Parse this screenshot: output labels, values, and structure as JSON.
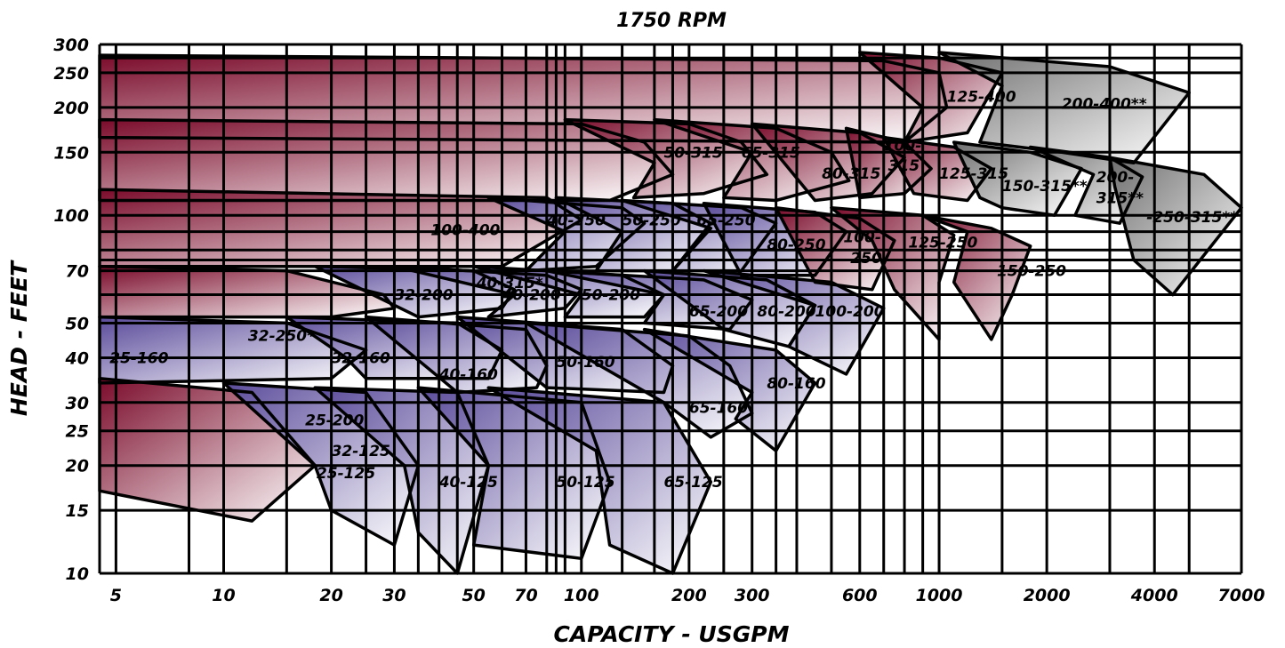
{
  "chart_data": {
    "type": "area",
    "title": "1750 RPM",
    "xlabel": "CAPACITY - USGPM",
    "ylabel": "HEAD - FEET",
    "x_scale": "log",
    "y_scale": "log",
    "xlim": [
      4.5,
      7000
    ],
    "ylim": [
      10,
      300
    ],
    "grid": true,
    "x_tick_labels": [
      "5",
      "10",
      "20",
      "30",
      "50",
      "70",
      "100",
      "200",
      "300",
      "600",
      "1000",
      "2000",
      "4000",
      "7000"
    ],
    "x_tick_values": [
      5,
      10,
      20,
      30,
      50,
      70,
      100,
      200,
      300,
      600,
      1000,
      2000,
      4000,
      7000
    ],
    "y_tick_labels": [
      "10",
      "15",
      "20",
      "25",
      "30",
      "40",
      "50",
      "70",
      "100",
      "150",
      "200",
      "250",
      "300"
    ],
    "y_tick_values": [
      10,
      15,
      20,
      25,
      30,
      40,
      50,
      70,
      100,
      150,
      200,
      250,
      300
    ],
    "x_grid_values": [
      4.5,
      5,
      8,
      10,
      15,
      20,
      25,
      30,
      35,
      40,
      45,
      50,
      60,
      70,
      80,
      85,
      90,
      100,
      130,
      160,
      180,
      200,
      250,
      300,
      350,
      400,
      500,
      600,
      700,
      800,
      900,
      1000,
      1500,
      2000,
      3000,
      4000,
      5000,
      7000
    ],
    "y_grid_values": [
      10,
      15,
      20,
      25,
      30,
      40,
      50,
      60,
      70,
      75,
      80,
      90,
      100,
      150,
      200,
      250,
      275,
      300
    ],
    "colors": {
      "red": "#7a0a2a",
      "blue": "#5a4a9a",
      "gray": "#6e6e6e",
      "light": "#ffffff"
    },
    "regions": [
      {
        "name": "100-400",
        "color": "red",
        "lx": 0.29,
        "ly": 0.35,
        "poly": [
          [
            4.5,
            280
          ],
          [
            700,
            270
          ],
          [
            1000,
            250
          ],
          [
            1050,
            200
          ],
          [
            800,
            160
          ],
          [
            4.5,
            165
          ]
        ]
      },
      {
        "name": "125-400",
        "color": "red",
        "lx": 1050,
        "ly": 215,
        "poly": [
          [
            600,
            285
          ],
          [
            1000,
            275
          ],
          [
            1500,
            250
          ],
          [
            1200,
            170
          ],
          [
            800,
            160
          ],
          [
            900,
            200
          ]
        ]
      },
      {
        "name": "200-400**",
        "color": "gray",
        "lx": 2200,
        "ly": 205,
        "poly": [
          [
            1000,
            285
          ],
          [
            3000,
            260
          ],
          [
            5000,
            220
          ],
          [
            3500,
            140
          ],
          [
            2200,
            150
          ],
          [
            1300,
            160
          ],
          [
            1500,
            230
          ]
        ]
      },
      {
        "name": "40-315*",
        "color": "red",
        "lx": 0.33,
        "ly": 0.45,
        "poly": [
          [
            4.5,
            185
          ],
          [
            100,
            180
          ],
          [
            150,
            160
          ],
          [
            180,
            130
          ],
          [
            120,
            110
          ],
          [
            4.5,
            110
          ]
        ]
      },
      {
        "name": "50-315",
        "color": "red",
        "lx": 170,
        "ly": 150,
        "poly": [
          [
            90,
            185
          ],
          [
            200,
            180
          ],
          [
            280,
            160
          ],
          [
            330,
            130
          ],
          [
            220,
            115
          ],
          [
            140,
            112
          ],
          [
            160,
            140
          ]
        ]
      },
      {
        "name": "65-315",
        "color": "red",
        "lx": 280,
        "ly": 150,
        "poly": [
          [
            160,
            185
          ],
          [
            350,
            175
          ],
          [
            500,
            150
          ],
          [
            560,
            125
          ],
          [
            350,
            110
          ],
          [
            250,
            112
          ],
          [
            300,
            150
          ]
        ]
      },
      {
        "name": "80-315",
        "color": "red",
        "lx": 470,
        "ly": 131,
        "poly": [
          [
            300,
            180
          ],
          [
            600,
            170
          ],
          [
            800,
            145
          ],
          [
            650,
            115
          ],
          [
            450,
            110
          ]
        ]
      },
      {
        "name": "100-",
        "color": "red",
        "lx": 700,
        "ly": 157,
        "poly": [
          [
            550,
            175
          ],
          [
            800,
            160
          ],
          [
            950,
            135
          ],
          [
            800,
            115
          ],
          [
            600,
            112
          ]
        ]
      },
      {
        "name": "315",
        "color": "none",
        "lx": 720,
        "ly": 138,
        "poly": []
      },
      {
        "name": "125-315",
        "color": "red",
        "lx": 1000,
        "ly": 131,
        "poly": [
          [
            700,
            165
          ],
          [
            1100,
            155
          ],
          [
            1400,
            135
          ],
          [
            1200,
            110
          ],
          [
            850,
            115
          ]
        ]
      },
      {
        "name": "150-315**",
        "color": "gray",
        "lx": 1500,
        "ly": 121,
        "poly": [
          [
            1100,
            160
          ],
          [
            1800,
            150
          ],
          [
            2500,
            135
          ],
          [
            2100,
            100
          ],
          [
            1500,
            105
          ],
          [
            1300,
            112
          ]
        ]
      },
      {
        "name": "200-",
        "color": "gray",
        "lx": 2750,
        "ly": 128,
        "poly": [
          [
            1800,
            155
          ],
          [
            3000,
            145
          ],
          [
            3700,
            128
          ],
          [
            3200,
            95
          ],
          [
            2400,
            100
          ],
          [
            2700,
            130
          ]
        ]
      },
      {
        "name": "315**",
        "color": "none",
        "lx": 2750,
        "ly": 112,
        "poly": []
      },
      {
        "name": "-250-315**",
        "color": "gray",
        "lx": 3800,
        "ly": 99,
        "poly": [
          [
            3000,
            145
          ],
          [
            5500,
            130
          ],
          [
            7000,
            105
          ],
          [
            4500,
            60
          ],
          [
            3500,
            75
          ],
          [
            3100,
            120
          ]
        ]
      },
      {
        "name": "32-250*",
        "color": "red",
        "lx": 0.13,
        "ly": 0.55,
        "poly": [
          [
            4.5,
            118
          ],
          [
            80,
            112
          ],
          [
            100,
            97
          ],
          [
            60,
            72
          ],
          [
            4.5,
            72
          ]
        ]
      },
      {
        "name": "40-250",
        "color": "blue",
        "lx": 80,
        "ly": 97,
        "poly": [
          [
            55,
            112
          ],
          [
            130,
            105
          ],
          [
            150,
            95
          ],
          [
            110,
            72
          ],
          [
            70,
            70
          ],
          [
            90,
            90
          ]
        ]
      },
      {
        "name": "50-250",
        "color": "blue",
        "lx": 130,
        "ly": 97,
        "poly": [
          [
            85,
            112
          ],
          [
            180,
            108
          ],
          [
            230,
            95
          ],
          [
            180,
            70
          ],
          [
            110,
            70
          ],
          [
            130,
            90
          ]
        ]
      },
      {
        "name": "65-250",
        "color": "blue",
        "lx": 210,
        "ly": 97,
        "poly": [
          [
            130,
            110
          ],
          [
            280,
            105
          ],
          [
            350,
            95
          ],
          [
            280,
            70
          ],
          [
            180,
            70
          ],
          [
            230,
            92
          ]
        ]
      },
      {
        "name": "80-250",
        "color": "blue",
        "lx": 330,
        "ly": 83,
        "poly": [
          [
            220,
            108
          ],
          [
            450,
            102
          ],
          [
            550,
            90
          ],
          [
            450,
            68
          ],
          [
            280,
            68
          ]
        ]
      },
      {
        "name": "100-",
        "color": "red",
        "lx": 540,
        "ly": 87,
        "poly": [
          [
            350,
            105
          ],
          [
            600,
            98
          ],
          [
            750,
            85
          ],
          [
            650,
            62
          ],
          [
            450,
            65
          ]
        ]
      },
      {
        "name": "250",
        "color": "none",
        "lx": 565,
        "ly": 76,
        "poly": []
      },
      {
        "name": "125-250",
        "color": "red",
        "lx": 820,
        "ly": 84,
        "poly": [
          [
            500,
            105
          ],
          [
            900,
            100
          ],
          [
            1100,
            88
          ],
          [
            1000,
            65
          ],
          [
            1000,
            45
          ],
          [
            750,
            62
          ],
          [
            650,
            85
          ]
        ]
      },
      {
        "name": "150-250",
        "color": "red",
        "lx": 1450,
        "ly": 70,
        "poly": [
          [
            900,
            100
          ],
          [
            1400,
            92
          ],
          [
            1800,
            82
          ],
          [
            1600,
            60
          ],
          [
            1400,
            45
          ],
          [
            1100,
            65
          ],
          [
            1200,
            90
          ]
        ]
      },
      {
        "name": "25-200",
        "color": "red",
        "lx": 0.18,
        "ly": 0.71,
        "poly": [
          [
            4.5,
            72
          ],
          [
            15,
            70
          ],
          [
            28,
            60
          ],
          [
            30,
            55
          ],
          [
            20,
            52
          ],
          [
            4.5,
            52
          ]
        ]
      },
      {
        "name": "32-200",
        "color": "blue",
        "lx": 30,
        "ly": 60,
        "poly": [
          [
            18,
            72
          ],
          [
            50,
            70
          ],
          [
            65,
            62
          ],
          [
            60,
            55
          ],
          [
            35,
            52
          ],
          [
            28,
            58
          ]
        ]
      },
      {
        "name": "40-200",
        "color": "blue",
        "lx": 60,
        "ly": 60,
        "poly": [
          [
            30,
            72
          ],
          [
            80,
            68
          ],
          [
            100,
            62
          ],
          [
            90,
            55
          ],
          [
            55,
            52
          ],
          [
            65,
            60
          ]
        ]
      },
      {
        "name": "50-200",
        "color": "blue",
        "lx": 100,
        "ly": 60,
        "poly": [
          [
            50,
            72
          ],
          [
            130,
            68
          ],
          [
            170,
            60
          ],
          [
            150,
            52
          ],
          [
            90,
            52
          ],
          [
            100,
            60
          ]
        ]
      },
      {
        "name": "65-200",
        "color": "blue",
        "lx": 200,
        "ly": 54,
        "poly": [
          [
            80,
            70
          ],
          [
            220,
            66
          ],
          [
            300,
            58
          ],
          [
            260,
            48
          ],
          [
            150,
            50
          ],
          [
            170,
            60
          ]
        ]
      },
      {
        "name": "80-200",
        "color": "blue",
        "lx": 310,
        "ly": 54,
        "poly": [
          [
            150,
            70
          ],
          [
            330,
            66
          ],
          [
            450,
            56
          ],
          [
            380,
            43
          ],
          [
            250,
            48
          ]
        ]
      },
      {
        "name": "100-200",
        "color": "blue",
        "lx": 450,
        "ly": 54,
        "poly": [
          [
            220,
            70
          ],
          [
            500,
            65
          ],
          [
            700,
            55
          ],
          [
            550,
            36
          ],
          [
            380,
            43
          ],
          [
            450,
            56
          ]
        ]
      },
      {
        "name": "25-160",
        "color": "blue",
        "lx": 4.8,
        "ly": 40,
        "poly": [
          [
            4.5,
            52
          ],
          [
            15,
            50
          ],
          [
            25,
            42
          ],
          [
            20,
            35
          ],
          [
            4.5,
            34
          ]
        ]
      },
      {
        "name": "32-160",
        "color": "blue",
        "lx": 20,
        "ly": 40,
        "poly": [
          [
            15,
            52
          ],
          [
            45,
            50
          ],
          [
            60,
            42
          ],
          [
            55,
            35
          ],
          [
            25,
            35
          ],
          [
            22,
            40
          ]
        ]
      },
      {
        "name": "40-160",
        "color": "blue",
        "lx": 40,
        "ly": 36,
        "poly": [
          [
            25,
            52
          ],
          [
            70,
            48
          ],
          [
            80,
            38
          ],
          [
            75,
            33
          ],
          [
            45,
            32
          ]
        ]
      },
      {
        "name": "50-160",
        "color": "blue",
        "lx": 85,
        "ly": 39,
        "poly": [
          [
            45,
            52
          ],
          [
            130,
            48
          ],
          [
            180,
            38
          ],
          [
            170,
            32
          ],
          [
            80,
            33
          ]
        ]
      },
      {
        "name": "65-160",
        "color": "blue",
        "lx": 200,
        "ly": 29,
        "poly": [
          [
            70,
            50
          ],
          [
            200,
            46
          ],
          [
            260,
            38
          ],
          [
            300,
            28
          ],
          [
            230,
            24
          ],
          [
            170,
            30
          ]
        ]
      },
      {
        "name": "80-160",
        "color": "blue",
        "lx": 330,
        "ly": 34,
        "poly": [
          [
            150,
            48
          ],
          [
            350,
            42
          ],
          [
            450,
            34
          ],
          [
            350,
            22
          ],
          [
            270,
            27
          ],
          [
            300,
            32
          ]
        ]
      },
      {
        "name": "25-125",
        "color": "red",
        "lx": 0.19,
        "ly": 0.81,
        "poly": [
          [
            4.5,
            35
          ],
          [
            12,
            32
          ],
          [
            18,
            20
          ],
          [
            12,
            14
          ],
          [
            4.5,
            17
          ]
        ]
      },
      {
        "name": "32-125",
        "color": "blue",
        "lx": 20,
        "ly": 22,
        "poly": [
          [
            10,
            34
          ],
          [
            25,
            32
          ],
          [
            35,
            20
          ],
          [
            30,
            12
          ],
          [
            20,
            15
          ],
          [
            18,
            20
          ]
        ]
      },
      {
        "name": "40-125",
        "color": "blue",
        "lx": 40,
        "ly": 18,
        "poly": [
          [
            18,
            33
          ],
          [
            45,
            32
          ],
          [
            55,
            20
          ],
          [
            45,
            10
          ],
          [
            35,
            13
          ],
          [
            32,
            20
          ]
        ]
      },
      {
        "name": "50-125",
        "color": "blue",
        "lx": 85,
        "ly": 18,
        "poly": [
          [
            35,
            33
          ],
          [
            100,
            30
          ],
          [
            120,
            18
          ],
          [
            100,
            11
          ],
          [
            50,
            12
          ],
          [
            55,
            20
          ]
        ]
      },
      {
        "name": "65-125",
        "color": "blue",
        "lx": 170,
        "ly": 18,
        "poly": [
          [
            55,
            33
          ],
          [
            170,
            30
          ],
          [
            230,
            18
          ],
          [
            180,
            10
          ],
          [
            120,
            12
          ],
          [
            110,
            22
          ]
        ]
      }
    ]
  }
}
